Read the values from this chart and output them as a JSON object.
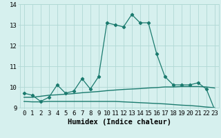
{
  "xlabel": "Humidex (Indice chaleur)",
  "x": [
    0,
    1,
    2,
    3,
    4,
    5,
    6,
    7,
    8,
    9,
    10,
    11,
    12,
    13,
    14,
    15,
    16,
    17,
    18,
    19,
    20,
    21,
    22,
    23
  ],
  "line1": [
    9.7,
    9.6,
    9.3,
    9.5,
    10.1,
    9.7,
    9.8,
    10.4,
    9.9,
    10.5,
    13.1,
    13.0,
    12.9,
    13.5,
    13.1,
    13.1,
    11.6,
    10.5,
    10.1,
    10.1,
    10.1,
    10.2,
    9.9,
    8.9
  ],
  "line2": [
    9.5,
    9.5,
    9.55,
    9.6,
    9.62,
    9.65,
    9.68,
    9.72,
    9.75,
    9.78,
    9.82,
    9.85,
    9.88,
    9.9,
    9.92,
    9.95,
    9.97,
    10.0,
    10.0,
    10.02,
    10.02,
    10.02,
    10.0,
    9.95
  ],
  "line3": [
    9.3,
    9.28,
    9.28,
    9.3,
    9.3,
    9.3,
    9.3,
    9.3,
    9.3,
    9.3,
    9.3,
    9.3,
    9.28,
    9.26,
    9.24,
    9.22,
    9.2,
    9.18,
    9.15,
    9.12,
    9.1,
    9.07,
    9.03,
    9.0
  ],
  "line_color": "#1a7a6e",
  "bg_color": "#d6f0ee",
  "grid_color": "#b0d8d4",
  "ylim": [
    9.0,
    14.0
  ],
  "xlim": [
    -0.5,
    23.5
  ],
  "yticks": [
    9,
    10,
    11,
    12,
    13,
    14
  ],
  "xticks": [
    0,
    1,
    2,
    3,
    4,
    5,
    6,
    7,
    8,
    9,
    10,
    11,
    12,
    13,
    14,
    15,
    16,
    17,
    18,
    19,
    20,
    21,
    22,
    23
  ],
  "tick_fontsize": 6.5,
  "xlabel_fontsize": 7.5
}
